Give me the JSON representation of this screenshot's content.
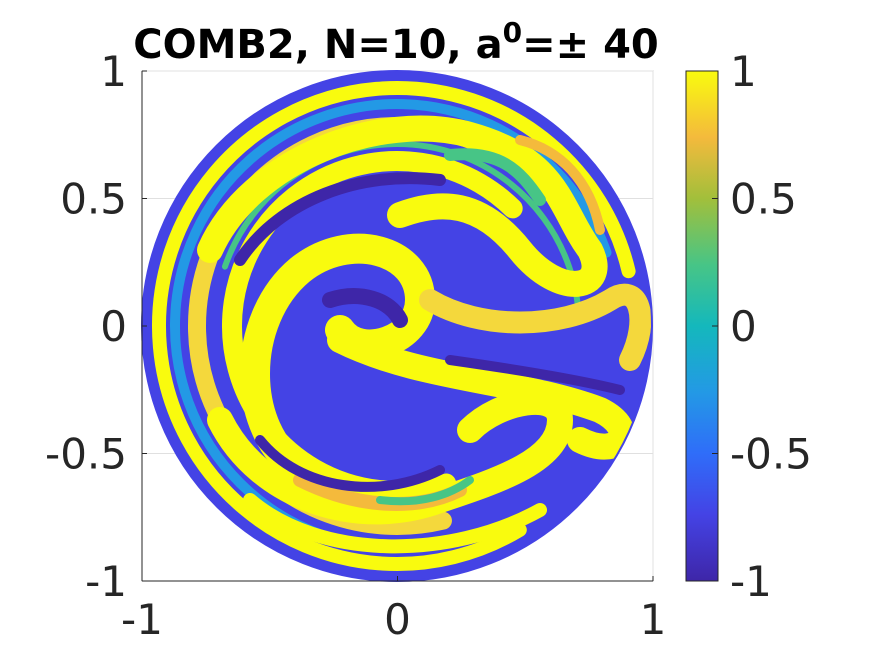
{
  "chart_data": {
    "type": "heatmap",
    "title": "COMB2, N=10, a",
    "title_superscript": "0",
    "title_suffix": "=± 40",
    "xlabel": "",
    "ylabel": "",
    "xlim": [
      -1,
      1
    ],
    "ylim": [
      -1,
      1
    ],
    "x_ticks": [
      -1,
      0,
      1
    ],
    "y_ticks": [
      -1,
      -0.5,
      0,
      0.5,
      1
    ],
    "x_tick_labels": [
      "-1",
      "0",
      "1"
    ],
    "y_tick_labels": [
      "-1",
      "-0.5",
      "0",
      "0.5",
      "1"
    ],
    "grid": true,
    "domain": "unit disk",
    "colorbar": {
      "colormap": "parula",
      "clim": [
        -1,
        1
      ],
      "ticks": [
        -1,
        -0.5,
        0,
        0.5,
        1
      ],
      "tick_labels": [
        "-1",
        "-0.5",
        "0",
        "0.5",
        "1"
      ]
    },
    "colors": {
      "low": "#3e26a8",
      "mid": "#14b8bc",
      "high": "#f9fb0e"
    }
  }
}
